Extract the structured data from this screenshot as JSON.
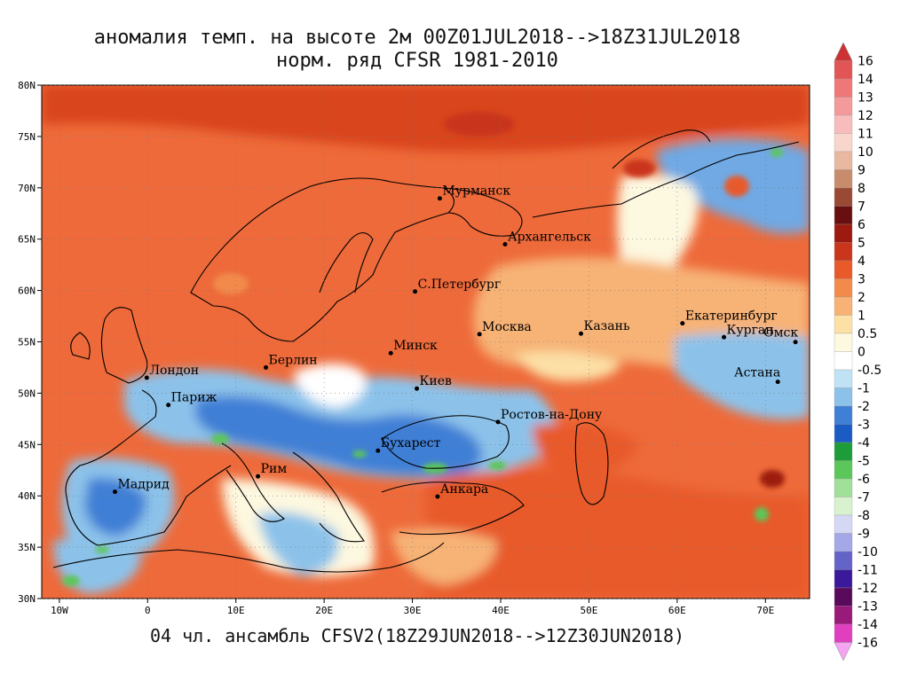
{
  "title": {
    "line1": "аномалия темп. на высоте 2м 00Z01JUL2018-->18Z31JUL2018",
    "line2": "норм. ряд CFSR 1981-2010"
  },
  "footer": "04 чл. ансамбль CFSV2(18Z29JUN2018-->12Z30JUN2018)",
  "map": {
    "lon_range": [
      -12,
      75
    ],
    "lat_range": [
      30,
      80
    ],
    "lon_ticks": [
      {
        "value": -10,
        "label": "10W"
      },
      {
        "value": 0,
        "label": "0"
      },
      {
        "value": 10,
        "label": "10E"
      },
      {
        "value": 20,
        "label": "20E"
      },
      {
        "value": 30,
        "label": "30E"
      },
      {
        "value": 40,
        "label": "40E"
      },
      {
        "value": 50,
        "label": "50E"
      },
      {
        "value": 60,
        "label": "60E"
      },
      {
        "value": 70,
        "label": "70E"
      }
    ],
    "lat_ticks": [
      {
        "value": 30,
        "label": "30N"
      },
      {
        "value": 35,
        "label": "35N"
      },
      {
        "value": 40,
        "label": "40N"
      },
      {
        "value": 45,
        "label": "45N"
      },
      {
        "value": 50,
        "label": "50N"
      },
      {
        "value": 55,
        "label": "55N"
      },
      {
        "value": 60,
        "label": "60N"
      },
      {
        "value": 65,
        "label": "65N"
      },
      {
        "value": 70,
        "label": "70N"
      },
      {
        "value": 75,
        "label": "75N"
      },
      {
        "value": 80,
        "label": "80N"
      }
    ],
    "cities": [
      {
        "name": "Мурманск",
        "lon": 33.1,
        "lat": 68.97
      },
      {
        "name": "Архангельск",
        "lon": 40.5,
        "lat": 64.5
      },
      {
        "name": "С.Петербург",
        "lon": 30.3,
        "lat": 59.9
      },
      {
        "name": "Москва",
        "lon": 37.6,
        "lat": 55.75
      },
      {
        "name": "Казань",
        "lon": 49.1,
        "lat": 55.8
      },
      {
        "name": "Екатеринбург",
        "lon": 60.6,
        "lat": 56.8
      },
      {
        "name": "Курган",
        "lon": 65.3,
        "lat": 55.45
      },
      {
        "name": "Омск",
        "lon": 73.4,
        "lat": 54.98
      },
      {
        "name": "Астана",
        "lon": 71.4,
        "lat": 51.1
      },
      {
        "name": "Минск",
        "lon": 27.55,
        "lat": 53.9
      },
      {
        "name": "Киев",
        "lon": 30.5,
        "lat": 50.45
      },
      {
        "name": "Берлин",
        "lon": 13.4,
        "lat": 52.5
      },
      {
        "name": "Лондон",
        "lon": -0.1,
        "lat": 51.5
      },
      {
        "name": "Париж",
        "lon": 2.35,
        "lat": 48.85
      },
      {
        "name": "Ростов-на-Дону",
        "lon": 39.7,
        "lat": 47.2
      },
      {
        "name": "Бухарест",
        "lon": 26.1,
        "lat": 44.4
      },
      {
        "name": "Рим",
        "lon": 12.5,
        "lat": 41.9
      },
      {
        "name": "Мадрид",
        "lon": -3.7,
        "lat": 40.4
      },
      {
        "name": "Анкара",
        "lon": 32.85,
        "lat": 39.93
      }
    ]
  },
  "colorbar": [
    {
      "label": "16",
      "color": "#cc3333"
    },
    {
      "label": "14",
      "color": "#e25555"
    },
    {
      "label": "13",
      "color": "#ee7777"
    },
    {
      "label": "12",
      "color": "#f49a9a"
    },
    {
      "label": "11",
      "color": "#f8bcbc"
    },
    {
      "label": "10",
      "color": "#f8d6cc"
    },
    {
      "label": "9",
      "color": "#e8b8a0"
    },
    {
      "label": "8",
      "color": "#c88c6c"
    },
    {
      "label": "7",
      "color": "#9a4a34"
    },
    {
      "label": "6",
      "color": "#6a0f0f"
    },
    {
      "label": "5",
      "color": "#9c1a10"
    },
    {
      "label": "4",
      "color": "#c9361c"
    },
    {
      "label": "3",
      "color": "#e85a2a"
    },
    {
      "label": "2",
      "color": "#f28a4c"
    },
    {
      "label": "1",
      "color": "#f7b276"
    },
    {
      "label": "0.5",
      "color": "#fce0a6"
    },
    {
      "label": "0",
      "color": "#fdf8e0"
    },
    {
      "label": "-0.5",
      "color": "#ffffff"
    },
    {
      "label": "-1",
      "color": "#bfe3f5"
    },
    {
      "label": "-2",
      "color": "#8cc2ea"
    },
    {
      "label": "-3",
      "color": "#3f7fd6"
    },
    {
      "label": "-4",
      "color": "#1b5cc4"
    },
    {
      "label": "-5",
      "color": "#1e9c3a"
    },
    {
      "label": "-6",
      "color": "#5bc659"
    },
    {
      "label": "-7",
      "color": "#a0e098"
    },
    {
      "label": "-8",
      "color": "#d8f2d0"
    },
    {
      "label": "-9",
      "color": "#d4d8f4"
    },
    {
      "label": "-10",
      "color": "#a4a8e8"
    },
    {
      "label": "-11",
      "color": "#6464c8"
    },
    {
      "label": "-12",
      "color": "#3a1a9a"
    },
    {
      "label": "-13",
      "color": "#5a0a5a"
    },
    {
      "label": "-14",
      "color": "#9a1a7a"
    },
    {
      "label": "-16",
      "color": "#e040c0"
    },
    {
      "label": "",
      "color": "#f4a4f0"
    }
  ]
}
